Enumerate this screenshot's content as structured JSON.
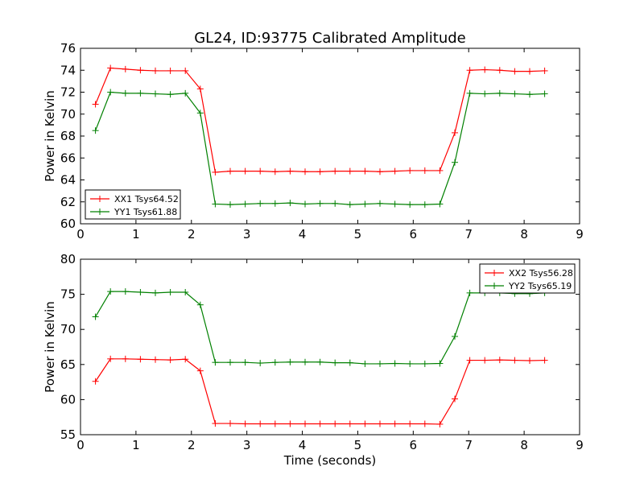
{
  "figure": {
    "title": "GL24, ID:93775 Calibrated Amplitude",
    "xlabel": "Time (seconds)"
  },
  "chart_data": [
    {
      "type": "line",
      "title": "GL24, ID:93775 Calibrated Amplitude",
      "xlabel": "",
      "ylabel": "Power in Kelvin",
      "xlim": [
        0,
        9
      ],
      "ylim": [
        60,
        76
      ],
      "xticks": [
        0,
        1,
        2,
        3,
        4,
        5,
        6,
        7,
        8,
        9
      ],
      "yticks": [
        60,
        62,
        64,
        66,
        68,
        70,
        72,
        74,
        76
      ],
      "grid": false,
      "legend_position": "lower-left",
      "x": [
        0.27,
        0.54,
        0.81,
        1.08,
        1.35,
        1.62,
        1.89,
        2.16,
        2.43,
        2.7,
        2.97,
        3.24,
        3.51,
        3.78,
        4.05,
        4.32,
        4.59,
        4.86,
        5.13,
        5.4,
        5.67,
        5.94,
        6.21,
        6.48,
        6.75,
        7.02,
        7.29,
        7.56,
        7.83,
        8.1,
        8.37
      ],
      "series": [
        {
          "name": "XX1 Tsys64.52",
          "color": "#ff0000",
          "values": [
            70.9,
            74.2,
            74.1,
            74.0,
            73.95,
            73.95,
            73.95,
            72.3,
            64.7,
            64.8,
            64.8,
            64.8,
            64.75,
            64.8,
            64.75,
            64.75,
            64.8,
            64.8,
            64.8,
            64.75,
            64.8,
            64.85,
            64.85,
            64.85,
            68.3,
            74.0,
            74.05,
            74.0,
            73.9,
            73.9,
            73.95
          ]
        },
        {
          "name": "YY1 Tsys61.88",
          "color": "#008000",
          "values": [
            68.5,
            72.0,
            71.9,
            71.9,
            71.85,
            71.8,
            71.9,
            70.1,
            61.8,
            61.75,
            61.8,
            61.85,
            61.85,
            61.9,
            61.8,
            61.85,
            61.85,
            61.75,
            61.8,
            61.85,
            61.8,
            61.75,
            61.75,
            61.8,
            65.6,
            71.9,
            71.85,
            71.9,
            71.85,
            71.8,
            71.85
          ]
        }
      ]
    },
    {
      "type": "line",
      "title": "",
      "xlabel": "Time (seconds)",
      "ylabel": "Power in Kelvin",
      "xlim": [
        0,
        9
      ],
      "ylim": [
        55,
        80
      ],
      "xticks": [
        0,
        1,
        2,
        3,
        4,
        5,
        6,
        7,
        8,
        9
      ],
      "yticks": [
        55,
        60,
        65,
        70,
        75,
        80
      ],
      "grid": false,
      "legend_position": "upper-right",
      "x": [
        0.27,
        0.54,
        0.81,
        1.08,
        1.35,
        1.62,
        1.89,
        2.16,
        2.43,
        2.7,
        2.97,
        3.24,
        3.51,
        3.78,
        4.05,
        4.32,
        4.59,
        4.86,
        5.13,
        5.4,
        5.67,
        5.94,
        6.21,
        6.48,
        6.75,
        7.02,
        7.29,
        7.56,
        7.83,
        8.1,
        8.37
      ],
      "series": [
        {
          "name": "XX2 Tsys56.28",
          "color": "#ff0000",
          "values": [
            62.6,
            65.8,
            65.8,
            65.75,
            65.7,
            65.65,
            65.75,
            64.1,
            56.6,
            56.6,
            56.55,
            56.55,
            56.55,
            56.55,
            56.55,
            56.55,
            56.55,
            56.55,
            56.55,
            56.55,
            56.55,
            56.55,
            56.55,
            56.5,
            60.1,
            65.6,
            65.6,
            65.65,
            65.6,
            65.55,
            65.6
          ]
        },
        {
          "name": "YY2 Tsys65.19",
          "color": "#008000",
          "values": [
            71.8,
            75.4,
            75.4,
            75.3,
            75.2,
            75.3,
            75.3,
            73.5,
            65.3,
            65.3,
            65.3,
            65.2,
            65.3,
            65.35,
            65.35,
            65.35,
            65.25,
            65.25,
            65.1,
            65.1,
            65.15,
            65.1,
            65.1,
            65.15,
            69.0,
            75.2,
            75.2,
            75.2,
            75.1,
            75.1,
            75.2
          ]
        }
      ]
    }
  ]
}
